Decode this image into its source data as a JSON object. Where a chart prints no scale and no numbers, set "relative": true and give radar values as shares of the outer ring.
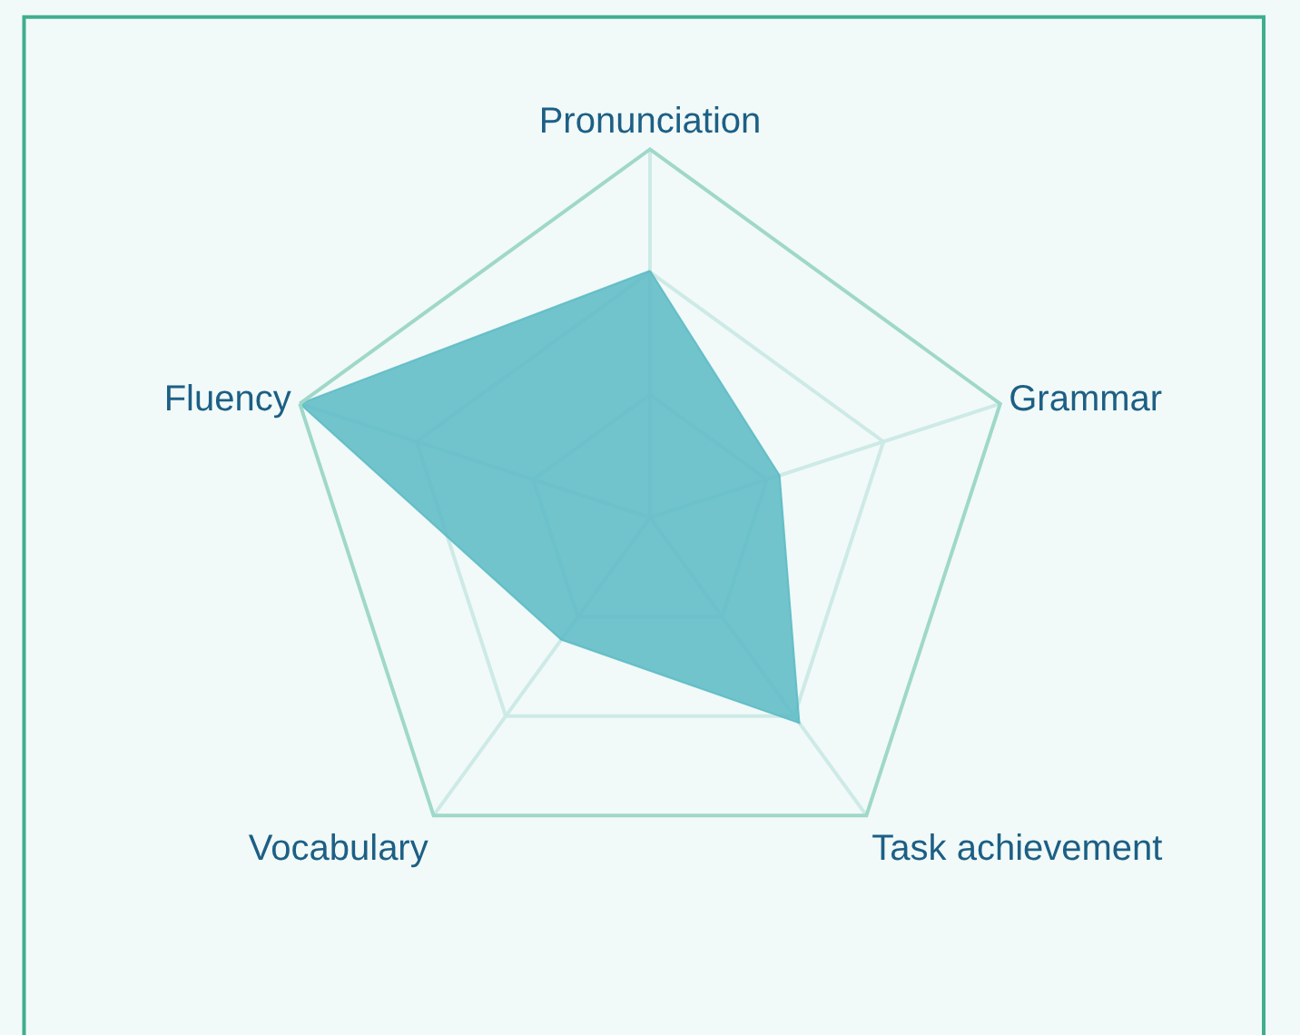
{
  "chart_data": {
    "type": "radar",
    "relative": true,
    "grid": true,
    "marker": "none",
    "categories": [
      "Pronunciation",
      "Grammar",
      "Task achievement",
      "Vocabulary",
      "Fluency"
    ],
    "series": [
      {
        "color": "#5bbac4",
        "values": [
          0.67,
          0.37,
          0.69,
          0.41,
          1.0
        ]
      }
    ]
  }
}
